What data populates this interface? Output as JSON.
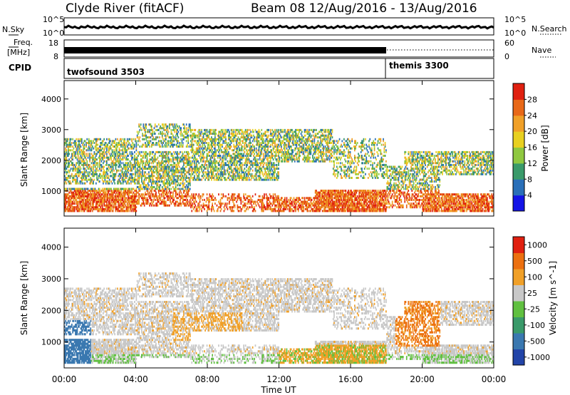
{
  "header": {
    "station": "Clyde River (fitACF)",
    "beam_date": "Beam 08  12/Aug/2016 - 13/Aug/2016"
  },
  "noise_panel": {
    "left_label": "N.Sky",
    "right_label": "N.Search",
    "left_ticks": [
      "10^5",
      "10^0"
    ],
    "right_ticks": [
      "10^5",
      "10^0"
    ]
  },
  "freq_panel": {
    "left_label_1": "Freq.",
    "left_label_2": "[MHz]",
    "right_label": "Nave",
    "left_ticks": [
      "18",
      "8"
    ],
    "right_ticks": [
      "60",
      "0"
    ]
  },
  "cpid_panel": {
    "label": "CPID",
    "programs": [
      {
        "name": "twofsound 3503",
        "start_hour": 0,
        "end_hour": 18
      },
      {
        "name": "themis 3300",
        "start_hour": 18,
        "end_hour": 24
      }
    ]
  },
  "chart_data": [
    {
      "type": "heatmap",
      "name": "power",
      "xlabel": "Time UT",
      "ylabel": "Slant Range [km]",
      "xlim": [
        0,
        24
      ],
      "ylim": [
        180,
        4600
      ],
      "x_ticks": [
        "00:00",
        "04:00",
        "08:00",
        "12:00",
        "16:00",
        "20:00",
        "00:00"
      ],
      "y_ticks": [
        1000,
        2000,
        3000,
        4000
      ],
      "colorbar_label": "Power [dB]",
      "colorbar_ticks": [
        4,
        8,
        12,
        16,
        20,
        24,
        28
      ],
      "colors": [
        "#1414e6",
        "#2a6fb8",
        "#3a9a6a",
        "#8fc840",
        "#e8d020",
        "#f0a028",
        "#e86818",
        "#e02010"
      ]
    },
    {
      "type": "heatmap",
      "name": "velocity",
      "xlabel": "Time UT",
      "ylabel": "Slant Range [km]",
      "xlim": [
        0,
        24
      ],
      "ylim": [
        180,
        4600
      ],
      "x_ticks": [
        "00:00",
        "04:00",
        "08:00",
        "12:00",
        "16:00",
        "20:00",
        "00:00"
      ],
      "y_ticks": [
        1000,
        2000,
        3000,
        4000
      ],
      "colorbar_label": "Velocity [m s^-1]",
      "colorbar_ticks": [
        "1000",
        "500",
        "100",
        "25",
        "-25",
        "-100",
        "-500",
        "-1000"
      ],
      "colors": [
        "#2244a8",
        "#3a78b0",
        "#3a9a6a",
        "#60c040",
        "#c8c8c8",
        "#f0a028",
        "#ec7010",
        "#e02010"
      ]
    }
  ]
}
